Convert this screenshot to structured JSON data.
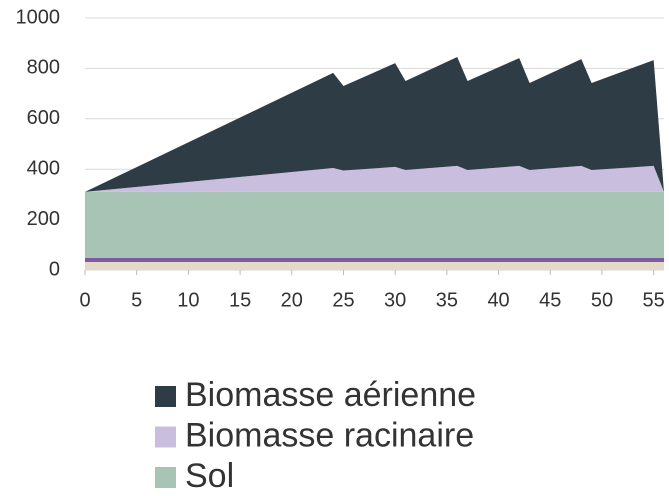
{
  "chart_data": {
    "type": "stacked_area",
    "x": [
      0,
      24,
      25,
      30,
      31,
      36,
      37,
      42,
      43,
      48,
      49,
      55,
      56
    ],
    "series": [
      {
        "name": "Sol",
        "color": "#a7c4b5",
        "values": [
          310,
          310,
          310,
          310,
          310,
          310,
          310,
          310,
          310,
          310,
          310,
          310,
          310
        ]
      },
      {
        "name": "Biomasse racinaire",
        "color": "#c9bedd",
        "values": [
          0,
          95,
          85,
          99,
          87,
          103,
          87,
          103,
          87,
          103,
          87,
          103,
          0
        ]
      },
      {
        "name": "Biomasse aérienne",
        "color": "#2e3d45",
        "values": [
          0,
          377,
          335,
          412,
          353,
          432,
          353,
          428,
          345,
          424,
          345,
          420,
          0
        ]
      }
    ],
    "xlim": [
      0,
      56
    ],
    "xticks": [
      0,
      5,
      10,
      15,
      20,
      25,
      30,
      35,
      40,
      45,
      50,
      55
    ],
    "ylim": [
      0,
      1000
    ],
    "yticks": [
      0,
      200,
      400,
      600,
      800,
      1000
    ],
    "grid": true,
    "legend": "bottom"
  }
}
